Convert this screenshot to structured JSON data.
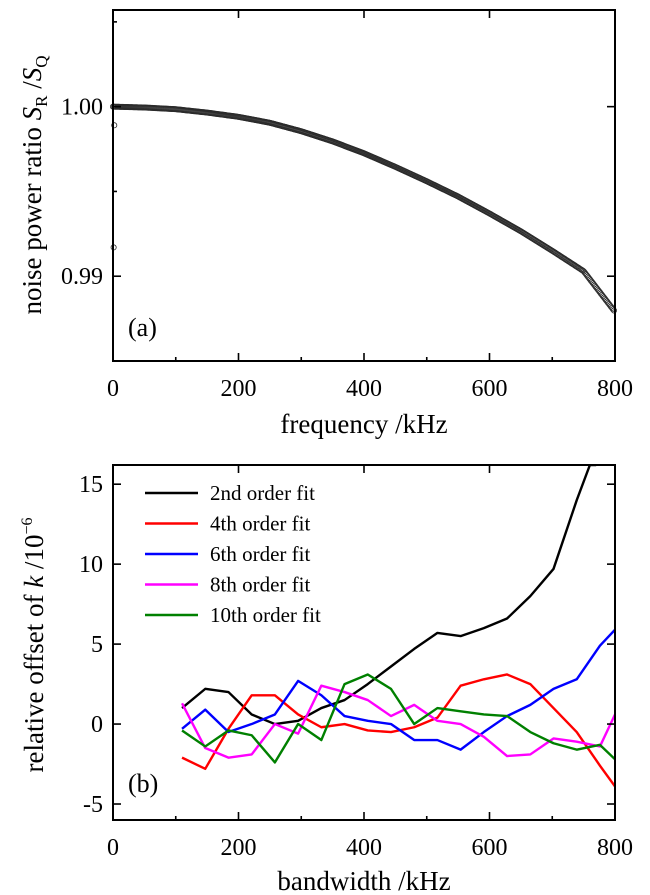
{
  "chart_data": [
    {
      "type": "scatter",
      "panel_label": "(a)",
      "xlabel": "frequency /kHz",
      "ylabel": {
        "prefix": "noise power ratio ",
        "s1": "S",
        "sub1": "R",
        "slash": " /",
        "s2": "S",
        "sub2": "Q"
      },
      "xlim": [
        0,
        800
      ],
      "ylim": [
        0.985,
        1.0057
      ],
      "xticks": [
        "0",
        "200",
        "400",
        "600",
        "800"
      ],
      "yticks": [
        "0.99",
        "1.00"
      ],
      "ytick_values": [
        0.99,
        1.0
      ],
      "grid": false,
      "marker": "open-circle",
      "curve": {
        "x": [
          0,
          50,
          100,
          150,
          200,
          250,
          300,
          350,
          400,
          450,
          500,
          550,
          600,
          650,
          700,
          750,
          800
        ],
        "y": [
          1.0,
          0.99995,
          0.99985,
          0.99965,
          0.9994,
          0.99905,
          0.99855,
          0.99795,
          0.99725,
          0.99645,
          0.9956,
          0.9947,
          0.9937,
          0.99265,
          0.9915,
          0.9903,
          0.9879
        ]
      },
      "outliers": [
        {
          "x": 1,
          "y": 0.9917
        },
        {
          "x": 2,
          "y": 0.9989
        }
      ]
    },
    {
      "type": "line",
      "panel_label": "(b)",
      "xlabel": "bandwidth /kHz",
      "ylabel": {
        "prefix": "relative offset of ",
        "k": "k",
        "unit": " /10",
        "sup": "−6"
      },
      "xlim": [
        0,
        800
      ],
      "ylim": [
        -6,
        16.2
      ],
      "xticks": [
        "0",
        "200",
        "400",
        "600",
        "800"
      ],
      "yticks": [
        "-5",
        "0",
        "5",
        "10",
        "15"
      ],
      "ytick_values": [
        -5,
        0,
        5,
        10,
        15
      ],
      "legend_position": "top-left",
      "grid": false,
      "x": [
        110,
        147,
        184,
        221,
        258,
        295,
        332,
        369,
        406,
        443,
        480,
        517,
        554,
        591,
        628,
        665,
        702,
        739,
        776,
        800
      ],
      "series": [
        {
          "name": "2nd order fit",
          "color": "#000000",
          "x": [
            110,
            147,
            184,
            221,
            258,
            295,
            332,
            369,
            406,
            443,
            480,
            517,
            554,
            591,
            628,
            665,
            702,
            739,
            760,
            770
          ],
          "values": [
            1.0,
            2.2,
            2.0,
            0.6,
            0.0,
            0.2,
            1.0,
            1.5,
            2.5,
            3.6,
            4.7,
            5.7,
            5.5,
            6.0,
            6.6,
            8.0,
            9.7,
            14.0,
            16.2,
            16.2
          ]
        },
        {
          "name": "4th order fit",
          "color": "#ff0000",
          "values": [
            -2.1,
            -2.8,
            -0.3,
            1.8,
            1.8,
            0.6,
            -0.2,
            0.0,
            -0.4,
            -0.5,
            -0.2,
            0.4,
            2.4,
            2.8,
            3.1,
            2.5,
            1.0,
            -0.5,
            -2.6,
            -3.9
          ]
        },
        {
          "name": "6th order fit",
          "color": "#0000ff",
          "values": [
            -0.3,
            0.9,
            -0.5,
            0.0,
            0.6,
            2.7,
            1.8,
            0.5,
            0.2,
            0.0,
            -1.0,
            -1.0,
            -1.6,
            -0.5,
            0.5,
            1.2,
            2.2,
            2.8,
            4.9,
            5.9
          ]
        },
        {
          "name": "8th order fit",
          "color": "#ff00ff",
          "values": [
            1.3,
            -1.5,
            -2.1,
            -1.9,
            0.0,
            -0.6,
            2.4,
            2.0,
            1.5,
            0.5,
            1.2,
            0.2,
            0.0,
            -0.8,
            -2.0,
            -1.9,
            -0.9,
            -1.1,
            -1.4,
            0.6
          ]
        },
        {
          "name": "10th order fit",
          "color": "#008000",
          "values": [
            -0.4,
            -1.4,
            -0.4,
            -0.7,
            -2.4,
            0.0,
            -1.0,
            2.5,
            3.1,
            2.2,
            0.0,
            1.0,
            0.8,
            0.6,
            0.5,
            -0.5,
            -1.2,
            -1.6,
            -1.3,
            -2.2
          ]
        }
      ]
    }
  ]
}
